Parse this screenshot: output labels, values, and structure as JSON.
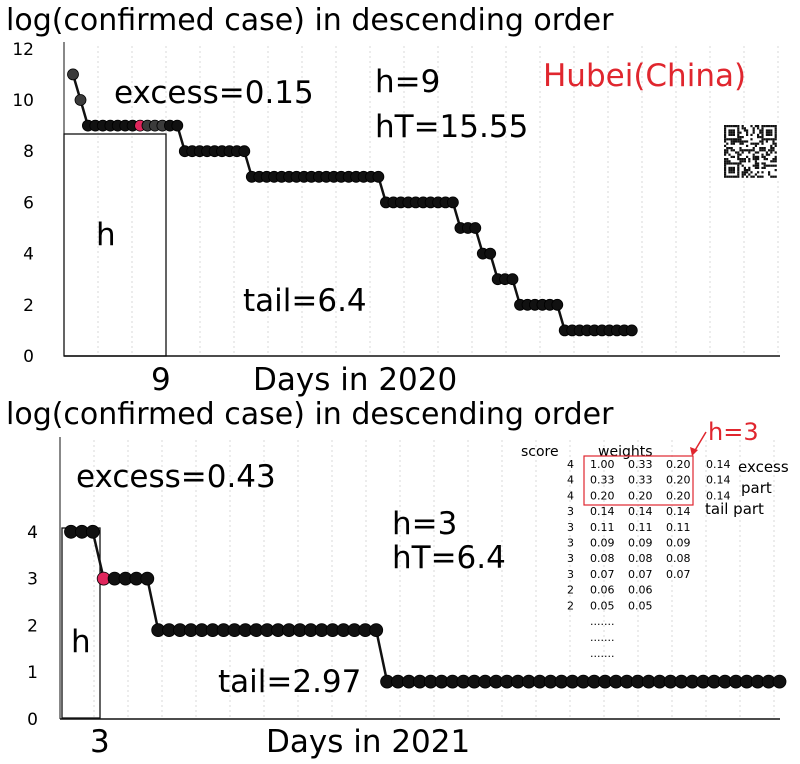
{
  "charts": [
    {
      "title": "log(confirmed case) in descending order",
      "xlabel": "Days in 2020",
      "region": "Hubei(China)",
      "excess_label": "excess=0.15",
      "h_label": "h=9",
      "hT_label": "hT=15.55",
      "tail_label": "tail=6.4",
      "box_label": "h",
      "h_tick": "9"
    },
    {
      "title": "log(confirmed case) in descending order",
      "xlabel": "Days in 2021",
      "excess_label": "excess=0.43",
      "h_label": "h=3",
      "hT_label": "hT=6.4",
      "tail_label": "tail=2.97",
      "box_label": "h",
      "h_tick": "3"
    }
  ],
  "weights_table": {
    "header_score": "score",
    "header_weights": "weights",
    "h_callout": "h=3",
    "rows": [
      [
        "4",
        "1.00",
        "0.33",
        "0.20",
        "0.14"
      ],
      [
        "4",
        "0.33",
        "0.33",
        "0.20",
        "0.14"
      ],
      [
        "4",
        "0.20",
        "0.20",
        "0.20",
        "0.14"
      ],
      [
        "3",
        "0.14",
        "0.14",
        "0.14",
        ""
      ],
      [
        "3",
        "0.11",
        "0.11",
        "0.11",
        ""
      ],
      [
        "3",
        "0.09",
        "0.09",
        "0.09",
        ""
      ],
      [
        "3",
        "0.08",
        "0.08",
        "0.08",
        ""
      ],
      [
        "3",
        "0.07",
        "0.07",
        "0.07",
        ""
      ],
      [
        "2",
        "0.06",
        "0.06",
        "",
        ""
      ],
      [
        "2",
        "0.05",
        "0.05",
        "",
        ""
      ]
    ],
    "ellipsis": ".......",
    "side_labels": [
      "excess",
      "part",
      "tail part"
    ]
  },
  "chart_data": [
    {
      "type": "scatter",
      "title": "log(confirmed case) in descending order",
      "xlabel": "Days in 2020",
      "ylabel": "",
      "ylim": [
        0,
        12
      ],
      "yticks": [
        0,
        2,
        4,
        6,
        8,
        10,
        12
      ],
      "grid": true,
      "x": [
        1,
        2,
        3,
        4,
        5,
        6,
        7,
        8,
        9,
        10,
        11,
        12,
        13,
        14,
        15,
        16,
        17,
        18,
        19,
        20,
        21,
        22,
        23,
        24,
        25,
        26,
        27,
        28,
        29,
        30,
        31,
        32,
        33,
        34,
        35,
        36,
        37,
        38,
        39,
        40,
        41,
        42,
        43,
        44,
        45,
        46,
        47,
        48,
        49,
        50,
        51,
        52,
        53,
        54,
        55,
        56,
        57,
        58,
        59,
        60,
        61,
        62,
        63,
        64,
        65,
        66,
        67,
        68,
        69,
        70,
        71,
        72,
        73,
        74,
        75,
        76
      ],
      "series": [
        {
          "values": [
            11,
            10,
            9,
            9,
            9,
            9,
            9,
            9,
            9,
            9,
            9,
            9,
            9,
            9,
            9,
            8,
            8,
            8,
            8,
            8,
            8,
            8,
            8,
            8,
            7,
            7,
            7,
            7,
            7,
            7,
            7,
            7,
            7,
            7,
            7,
            7,
            7,
            7,
            7,
            7,
            7,
            7,
            6,
            6,
            6,
            6,
            6,
            6,
            6,
            6,
            6,
            6,
            5,
            5,
            5,
            4,
            4,
            3,
            3,
            3,
            2,
            2,
            2,
            2,
            2,
            2,
            1,
            1,
            1,
            1,
            1,
            1,
            1,
            1,
            1,
            1
          ]
        }
      ],
      "highlight_index": 9
    },
    {
      "type": "scatter",
      "title": "log(confirmed case) in descending order",
      "xlabel": "Days in 2021",
      "ylabel": "",
      "ylim": [
        0,
        4
      ],
      "yticks": [
        0,
        1,
        2,
        3,
        4
      ],
      "grid": true,
      "x": [
        1,
        2,
        3,
        4,
        5,
        6,
        7,
        8,
        9,
        10,
        11,
        12,
        13,
        14,
        15,
        16,
        17,
        18,
        19,
        20,
        21,
        22,
        23,
        24,
        25,
        26,
        27,
        28,
        29,
        30,
        31,
        32,
        33,
        34,
        35,
        36,
        37,
        38,
        39,
        40,
        41,
        42,
        43,
        44,
        45,
        46,
        47,
        48,
        49,
        50,
        51,
        52,
        53,
        54,
        55,
        56,
        57,
        58,
        59,
        60,
        61,
        62,
        63,
        64,
        65,
        66
      ],
      "series": [
        {
          "values": [
            4,
            4,
            4,
            3,
            3,
            3,
            3,
            3,
            1.9,
            1.9,
            1.9,
            1.9,
            1.9,
            1.9,
            1.9,
            1.9,
            1.9,
            1.9,
            1.9,
            1.9,
            1.9,
            1.9,
            1.9,
            1.9,
            1.9,
            1.9,
            1.9,
            1.9,
            1.9,
            0.8,
            0.8,
            0.8,
            0.8,
            0.8,
            0.8,
            0.8,
            0.8,
            0.8,
            0.8,
            0.8,
            0.8,
            0.8,
            0.8,
            0.8,
            0.8,
            0.8,
            0.8,
            0.8,
            0.8,
            0.8,
            0.8,
            0.8,
            0.8,
            0.8,
            0.8,
            0.8,
            0.8,
            0.8,
            0.8,
            0.8,
            0.8,
            0.8,
            0.8,
            0.8,
            0.8,
            0.8
          ]
        }
      ],
      "highlight_index": 3
    }
  ]
}
